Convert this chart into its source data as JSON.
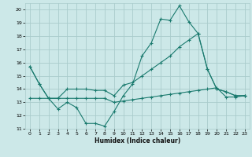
{
  "xlabel": "Humidex (Indice chaleur)",
  "background_color": "#cce8e8",
  "grid_color": "#aacccc",
  "line_color": "#1a7a6e",
  "xlim": [
    -0.5,
    23.5
  ],
  "ylim": [
    11,
    20.5
  ],
  "xticks": [
    0,
    1,
    2,
    3,
    4,
    5,
    6,
    7,
    8,
    9,
    10,
    11,
    12,
    13,
    14,
    15,
    16,
    17,
    18,
    19,
    20,
    21,
    22,
    23
  ],
  "yticks": [
    11,
    12,
    13,
    14,
    15,
    16,
    17,
    18,
    19,
    20
  ],
  "series": [
    [
      15.7,
      14.4,
      13.3,
      12.5,
      13.0,
      12.6,
      11.4,
      11.4,
      11.2,
      12.3,
      13.5,
      14.4,
      16.5,
      17.5,
      19.3,
      19.2,
      20.3,
      19.1,
      18.2,
      15.5,
      14.0,
      13.8,
      13.5,
      13.5
    ],
    [
      15.7,
      14.4,
      13.3,
      13.3,
      14.0,
      14.0,
      14.0,
      13.9,
      13.9,
      13.5,
      14.3,
      14.5,
      15.0,
      15.5,
      16.0,
      16.5,
      17.2,
      17.7,
      18.2,
      15.5,
      14.0,
      13.8,
      13.5,
      13.5
    ],
    [
      13.3,
      13.3,
      13.3,
      13.3,
      13.3,
      13.3,
      13.3,
      13.3,
      13.3,
      13.0,
      13.1,
      13.2,
      13.3,
      13.4,
      13.5,
      13.6,
      13.7,
      13.8,
      13.9,
      14.0,
      14.1,
      13.4,
      13.4,
      13.5
    ]
  ]
}
